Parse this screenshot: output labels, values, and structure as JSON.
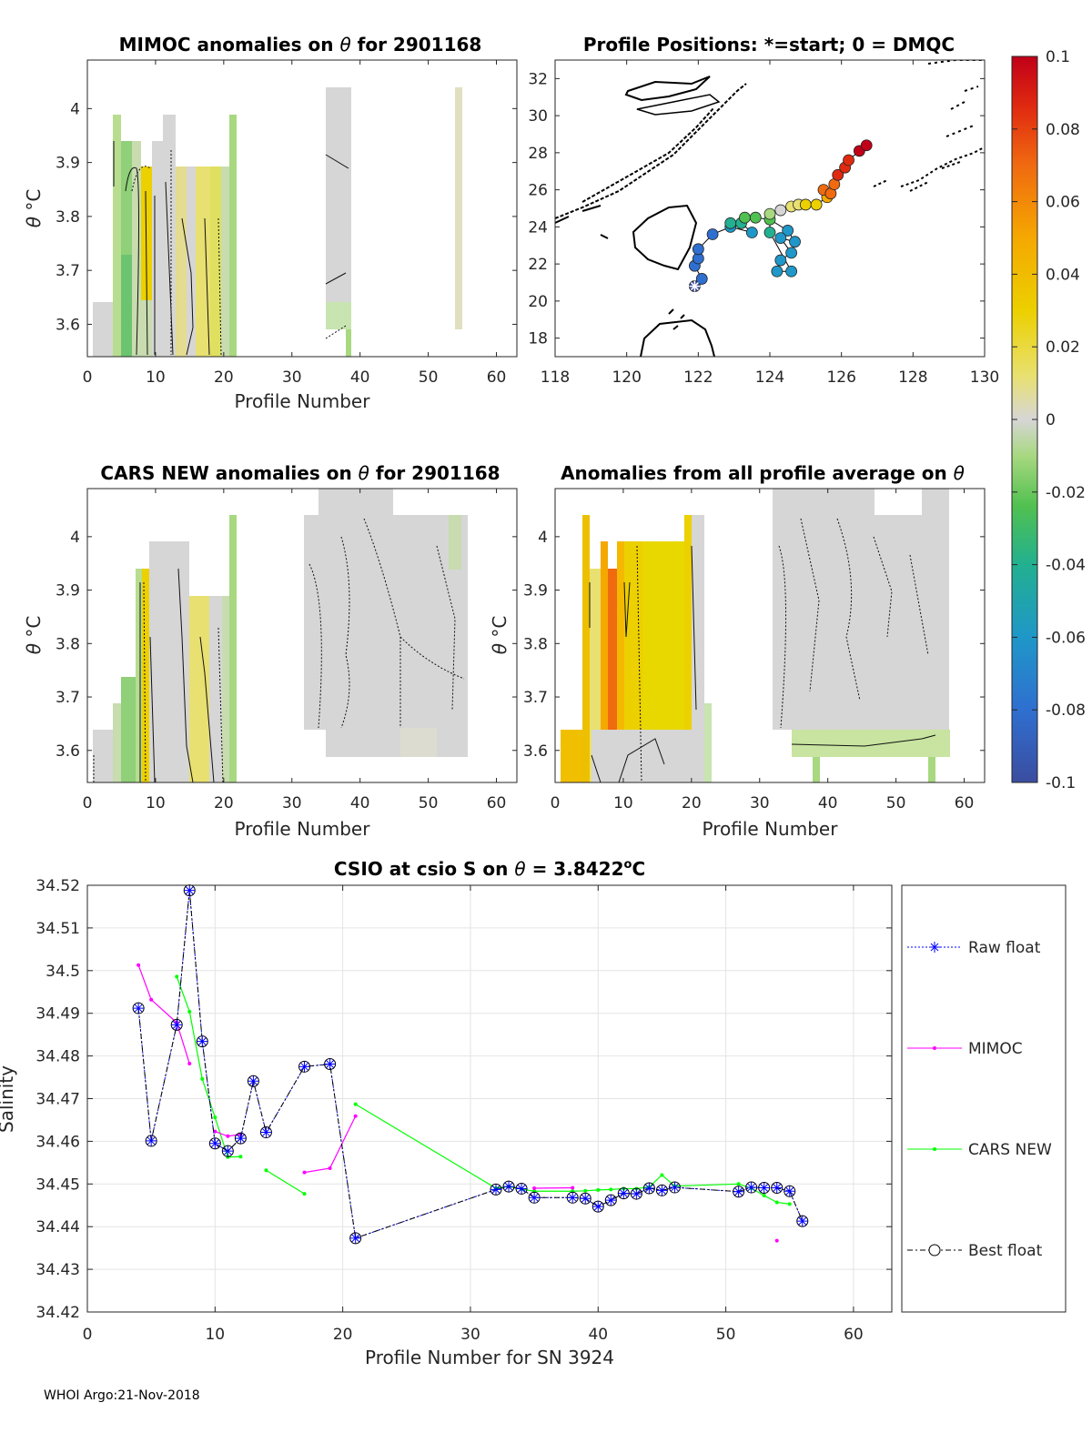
{
  "footer": "WHOI Argo:21-Nov-2018",
  "colorbar": {
    "ticks": [
      "0.1",
      "0.08",
      "0.06",
      "0.04",
      "0.02",
      "0",
      "-0.02",
      "-0.04",
      "-0.06",
      "-0.08",
      "-0.1"
    ],
    "colors": [
      "#3b4da0",
      "#2f6fd0",
      "#1f97c8",
      "#22b090",
      "#50c050",
      "#a8d880",
      "#d6d6d6",
      "#e8e070",
      "#ecd000",
      "#f5a800",
      "#f06a10",
      "#e02a10",
      "#c00018"
    ]
  },
  "panel_mimoc": {
    "title_prefix": "MIMOC anomalies on ",
    "title_symbol": "θ",
    "title_suffix": "  for 2901168",
    "xlabel": "Profile Number",
    "ylabel_sym": "θ",
    "ylabel_unit": "°C",
    "xticks": [
      "0",
      "10",
      "20",
      "30",
      "40",
      "50",
      "60"
    ],
    "yticks": [
      "4",
      "3.9",
      "3.8",
      "3.7",
      "3.6"
    ]
  },
  "panel_positions": {
    "title": "Profile Positions: *=start; 0 = DMQC",
    "xticks": [
      "118",
      "120",
      "122",
      "124",
      "126",
      "128",
      "130"
    ],
    "yticks": [
      "32",
      "30",
      "28",
      "26",
      "24",
      "22",
      "20",
      "18"
    ]
  },
  "panel_cars": {
    "title_prefix": "CARS NEW anomalies on ",
    "title_symbol": "θ",
    "title_suffix": " for 2901168",
    "xlabel": "Profile Number",
    "ylabel_sym": "θ",
    "ylabel_unit": "°C",
    "xticks": [
      "0",
      "10",
      "20",
      "30",
      "40",
      "50",
      "60"
    ],
    "yticks": [
      "4",
      "3.9",
      "3.8",
      "3.7",
      "3.6"
    ]
  },
  "panel_avg": {
    "title_prefix": "Anomalies from all profile average on ",
    "title_symbol": "θ",
    "xlabel": "Profile Number",
    "ylabel_sym": "θ",
    "ylabel_unit": "°C",
    "xticks": [
      "0",
      "10",
      "20",
      "30",
      "40",
      "50",
      "60"
    ],
    "yticks": [
      "4",
      "3.9",
      "3.8",
      "3.7",
      "3.6"
    ]
  },
  "chart_data": [
    {
      "type": "heatmap",
      "title": "MIMOC anomalies on θ for 2901168",
      "xlabel": "Profile Number",
      "ylabel": "θ °C",
      "xlim": [
        0,
        63
      ],
      "ylim": [
        3.54,
        4.09
      ],
      "colorbar_range": [
        -0.1,
        0.1
      ]
    },
    {
      "type": "scatter",
      "title": "Profile Positions: *=start; 0 = DMQC",
      "xlim": [
        118,
        130
      ],
      "ylim": [
        17,
        33
      ],
      "positions": [
        {
          "lon": 121.9,
          "lat": 20.8,
          "c": -0.095
        },
        {
          "lon": 122.1,
          "lat": 21.2,
          "c": -0.09
        },
        {
          "lon": 121.9,
          "lat": 21.9,
          "c": -0.09
        },
        {
          "lon": 122.0,
          "lat": 22.3,
          "c": -0.085
        },
        {
          "lon": 122.0,
          "lat": 22.8,
          "c": -0.085
        },
        {
          "lon": 122.4,
          "lat": 23.6,
          "c": -0.08
        },
        {
          "lon": 122.9,
          "lat": 24.0,
          "c": -0.065
        },
        {
          "lon": 123.5,
          "lat": 23.7,
          "c": -0.07
        },
        {
          "lon": 123.2,
          "lat": 24.2,
          "c": -0.05
        },
        {
          "lon": 122.9,
          "lat": 24.2,
          "c": -0.045
        },
        {
          "lon": 123.3,
          "lat": 24.5,
          "c": -0.04
        },
        {
          "lon": 123.6,
          "lat": 24.5,
          "c": -0.035
        },
        {
          "lon": 124.0,
          "lat": 24.4,
          "c": -0.03
        },
        {
          "lon": 124.5,
          "lat": 23.8,
          "c": -0.06
        },
        {
          "lon": 124.7,
          "lat": 23.2,
          "c": -0.065
        },
        {
          "lon": 124.3,
          "lat": 23.4,
          "c": -0.06
        },
        {
          "lon": 124.6,
          "lat": 22.6,
          "c": -0.065
        },
        {
          "lon": 124.3,
          "lat": 22.2,
          "c": -0.07
        },
        {
          "lon": 124.2,
          "lat": 21.6,
          "c": -0.065
        },
        {
          "lon": 124.6,
          "lat": 21.6,
          "c": -0.06
        },
        {
          "lon": 124.0,
          "lat": 23.7,
          "c": -0.055
        },
        {
          "lon": 124.0,
          "lat": 24.7,
          "c": -0.015
        },
        {
          "lon": 124.3,
          "lat": 24.9,
          "c": -0.005
        },
        {
          "lon": 124.6,
          "lat": 25.1,
          "c": 0.01
        },
        {
          "lon": 124.8,
          "lat": 25.2,
          "c": 0.02
        },
        {
          "lon": 125.0,
          "lat": 25.2,
          "c": 0.03
        },
        {
          "lon": 125.3,
          "lat": 25.2,
          "c": 0.04
        },
        {
          "lon": 125.6,
          "lat": 25.6,
          "c": 0.055
        },
        {
          "lon": 125.5,
          "lat": 26.0,
          "c": 0.07
        },
        {
          "lon": 125.7,
          "lat": 25.8,
          "c": 0.06
        },
        {
          "lon": 125.8,
          "lat": 26.3,
          "c": 0.075
        },
        {
          "lon": 125.9,
          "lat": 26.8,
          "c": 0.08
        },
        {
          "lon": 126.1,
          "lat": 27.2,
          "c": 0.085
        },
        {
          "lon": 126.2,
          "lat": 27.6,
          "c": 0.09
        },
        {
          "lon": 126.5,
          "lat": 28.1,
          "c": 0.095
        },
        {
          "lon": 126.7,
          "lat": 28.4,
          "c": 0.1
        }
      ]
    },
    {
      "type": "heatmap",
      "title": "CARS NEW anomalies on θ for 2901168",
      "xlabel": "Profile Number",
      "ylabel": "θ °C",
      "xlim": [
        0,
        63
      ],
      "ylim": [
        3.54,
        4.09
      ]
    },
    {
      "type": "heatmap",
      "title": "Anomalies from all profile average on θ",
      "xlabel": "Profile Number",
      "ylabel": "θ °C",
      "xlim": [
        0,
        63
      ],
      "ylim": [
        3.54,
        4.09
      ]
    },
    {
      "type": "line",
      "title_prefix": "CSIO at csio S on ",
      "title_symbol": "θ",
      "title_mid": " = 3.8422",
      "title_sup": "o",
      "title_unit": "C",
      "xlabel": "Profile Number for SN 3924",
      "ylabel": "Salinity",
      "xlim": [
        0,
        63
      ],
      "ylim": [
        34.42,
        34.52
      ],
      "xticks": [
        "0",
        "10",
        "20",
        "30",
        "40",
        "50",
        "60"
      ],
      "yticks": [
        "34.52",
        "34.51",
        "34.5",
        "34.49",
        "34.48",
        "34.47",
        "34.46",
        "34.45",
        "34.44",
        "34.43",
        "34.42"
      ],
      "series": [
        {
          "name": "Raw float",
          "color": "#0000ff",
          "x": [
            4,
            5,
            7,
            8,
            9,
            10,
            11,
            12,
            13,
            14,
            17,
            19,
            21,
            32,
            33,
            34,
            35,
            38,
            39,
            40,
            41,
            42,
            43,
            44,
            45,
            46,
            51,
            52,
            53,
            54,
            55,
            56
          ],
          "y": [
            34.4912,
            34.4601,
            34.4873,
            34.5188,
            34.4834,
            34.4595,
            34.4577,
            34.4607,
            34.4741,
            34.4621,
            34.4775,
            34.4781,
            34.4373,
            34.4487,
            34.4494,
            34.4489,
            34.4468,
            34.4468,
            34.4466,
            34.4447,
            34.4462,
            34.4478,
            34.4477,
            34.449,
            34.4485,
            34.4492,
            34.4482,
            34.4492,
            34.4491,
            34.4491,
            34.4483,
            34.4413
          ]
        },
        {
          "name": "MIMOC",
          "color": "#ff00ff",
          "segments": [
            {
              "x": [
                4,
                5,
                7,
                8
              ],
              "y": [
                34.5013,
                34.4932,
                34.4878,
                34.4782
              ]
            },
            {
              "x": [
                10,
                11,
                12
              ],
              "y": [
                34.4623,
                34.4612,
                34.4616
              ]
            },
            {
              "x": [
                17,
                19,
                21
              ],
              "y": [
                34.4527,
                34.4537,
                34.4659
              ]
            },
            {
              "x": [
                35,
                38
              ],
              "y": [
                34.449,
                34.4491
              ]
            },
            {
              "x": [
                54
              ],
              "y": [
                34.4367
              ]
            }
          ]
        },
        {
          "name": "CARS NEW",
          "color": "#00ff00",
          "segments": [
            {
              "x": [
                7,
                8,
                9,
                10,
                11,
                12
              ],
              "y": [
                34.4986,
                34.4904,
                34.4746,
                34.4656,
                34.4563,
                34.4564
              ]
            },
            {
              "x": [
                14,
                17
              ],
              "y": [
                34.4532,
                34.4477
              ]
            },
            {
              "x": [
                21,
                32,
                33,
                34,
                35,
                38,
                39,
                40,
                41,
                42,
                43,
                44,
                45,
                46,
                51,
                52,
                53,
                54,
                55
              ],
              "y": [
                34.4687,
                34.449,
                34.4494,
                34.4488,
                34.4483,
                34.4483,
                34.4484,
                34.4486,
                34.4487,
                34.4489,
                34.4489,
                34.4493,
                34.4521,
                34.4495,
                34.45,
                34.449,
                34.4473,
                34.4457,
                34.4453
              ]
            }
          ]
        },
        {
          "name": "Best float",
          "color": "#000000",
          "x": [
            4,
            5,
            7,
            8,
            9,
            10,
            11,
            12,
            13,
            14,
            17,
            19,
            21,
            32,
            33,
            34,
            35,
            38,
            39,
            40,
            41,
            42,
            43,
            44,
            45,
            46,
            51,
            52,
            53,
            54,
            55,
            56
          ],
          "y": [
            34.4912,
            34.4601,
            34.4873,
            34.5188,
            34.4834,
            34.4595,
            34.4577,
            34.4607,
            34.4741,
            34.4621,
            34.4775,
            34.4781,
            34.4373,
            34.4487,
            34.4494,
            34.4489,
            34.4468,
            34.4468,
            34.4466,
            34.4447,
            34.4462,
            34.4478,
            34.4477,
            34.449,
            34.4485,
            34.4492,
            34.4482,
            34.4492,
            34.4491,
            34.4491,
            34.4483,
            34.4413
          ]
        }
      ]
    }
  ]
}
